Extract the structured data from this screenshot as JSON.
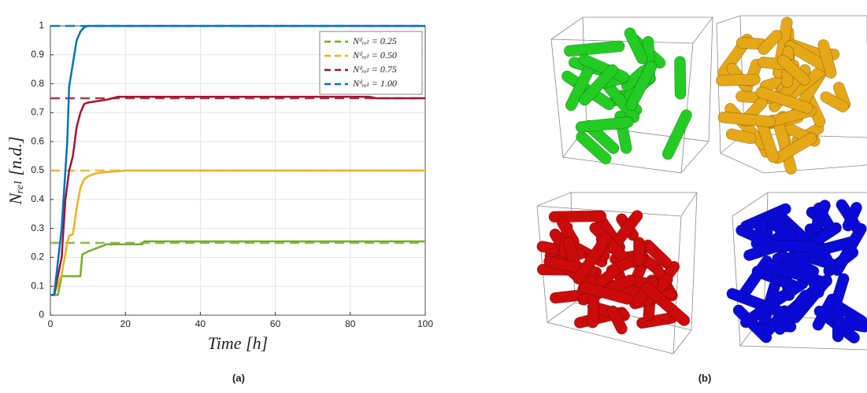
{
  "chart_data": {
    "type": "line",
    "xlabel": "Time [h]",
    "ylabel": "Nᵣₑₗ [n.d.]",
    "xlim": [
      0,
      100
    ],
    "xticks": [
      0,
      20,
      40,
      60,
      80,
      100
    ],
    "ylim": [
      0,
      1
    ],
    "yticks": [
      0,
      0.1,
      0.2,
      0.3,
      0.4,
      0.5,
      0.6,
      0.7,
      0.8,
      0.9,
      1
    ],
    "grid": true,
    "legend": "upper right",
    "series": [
      {
        "name": "Nᵈᵣₑₗ = 0.25",
        "color": "#77ac30",
        "target": 0.25,
        "x": [
          0,
          2,
          3,
          8,
          8.5,
          10,
          12,
          14,
          15,
          24.5,
          25,
          100
        ],
        "values": [
          0.07,
          0.07,
          0.135,
          0.135,
          0.21,
          0.22,
          0.23,
          0.24,
          0.245,
          0.245,
          0.255,
          0.255
        ]
      },
      {
        "name": "Nᵈᵣₑₗ = 0.50",
        "color": "#edb120",
        "target": 0.5,
        "x": [
          0,
          1,
          3,
          4.5,
          5,
          6,
          7,
          8,
          9,
          10,
          12,
          15,
          20,
          100
        ],
        "values": [
          0.07,
          0.07,
          0.14,
          0.25,
          0.275,
          0.28,
          0.37,
          0.44,
          0.47,
          0.48,
          0.49,
          0.495,
          0.5,
          0.5
        ]
      },
      {
        "name": "Nᵈᵣₑₗ = 0.75",
        "color": "#a2142f",
        "target": 0.75,
        "x": [
          0,
          1,
          3,
          4,
          5,
          6,
          7,
          8,
          9,
          10,
          15,
          18,
          85,
          87,
          100
        ],
        "values": [
          0.07,
          0.07,
          0.2,
          0.4,
          0.5,
          0.55,
          0.65,
          0.7,
          0.73,
          0.735,
          0.745,
          0.755,
          0.755,
          0.75,
          0.75
        ]
      },
      {
        "name": "Nᵈᵣₑₗ = 1.00",
        "color": "#0072bd",
        "target": 1,
        "x": [
          0,
          1,
          3,
          4.5,
          5,
          6,
          7,
          8,
          9,
          10,
          100
        ],
        "values": [
          0.07,
          0.07,
          0.3,
          0.6,
          0.79,
          0.87,
          0.95,
          0.98,
          0.995,
          1,
          1
        ]
      }
    ]
  },
  "captions": {
    "a": "(a)",
    "b": "(b)"
  }
}
